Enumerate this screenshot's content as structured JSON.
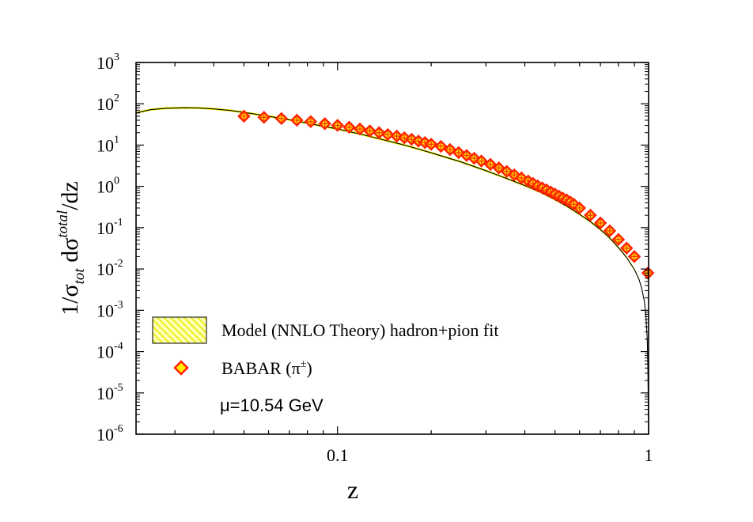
{
  "chart_data": {
    "type": "scatter",
    "xlabel": "z",
    "ylabel": {
      "prefix": "1/σ",
      "sub": "tot",
      "mid": " dσ",
      "sup": "total",
      "suffix": "/dz"
    },
    "x_scale": "log",
    "y_scale": "log",
    "xlim": [
      0.0225,
      1.0
    ],
    "ylim": [
      1e-06,
      1000
    ],
    "x_ticks": [
      {
        "value": 0.1,
        "label": "0.1"
      },
      {
        "value": 1,
        "label": "1"
      }
    ],
    "y_ticks": [
      {
        "value": 1000,
        "base": "10",
        "exp": "3"
      },
      {
        "value": 100,
        "base": "10",
        "exp": "2"
      },
      {
        "value": 10,
        "base": "10",
        "exp": "1"
      },
      {
        "value": 1,
        "base": "10",
        "exp": "0"
      },
      {
        "value": 0.1,
        "base": "10",
        "exp": "-1"
      },
      {
        "value": 0.01,
        "base": "10",
        "exp": "-2"
      },
      {
        "value": 0.001,
        "base": "10",
        "exp": "-3"
      },
      {
        "value": 0.0001,
        "base": "10",
        "exp": "-4"
      },
      {
        "value": 1e-05,
        "base": "10",
        "exp": "-5"
      },
      {
        "value": 1e-06,
        "base": "10",
        "exp": "-6"
      }
    ],
    "grid": false,
    "legend_position": "bottom-left",
    "legend": [
      {
        "label": "Model (NNLO Theory) hadron+pion fit",
        "swatch": "hatched-band",
        "color": "#f2f250"
      },
      {
        "label_prefix": "BABAR (π",
        "label_sup": "±",
        "label_suffix": ")",
        "swatch": "diamond",
        "color": "#ff2200"
      }
    ],
    "annotation": "μ=10.54 GeV",
    "series": [
      {
        "style": "band",
        "color": "#f5f500",
        "edge_color": "#000000",
        "x": [
          0.0225,
          0.025,
          0.028,
          0.032,
          0.036,
          0.04,
          0.045,
          0.05,
          0.06,
          0.07,
          0.08,
          0.09,
          0.1,
          0.12,
          0.14,
          0.16,
          0.18,
          0.2,
          0.25,
          0.3,
          0.35,
          0.4,
          0.45,
          0.5,
          0.55,
          0.6,
          0.65,
          0.7,
          0.75,
          0.8,
          0.85,
          0.9,
          0.93,
          0.95,
          0.97,
          0.98,
          0.99,
          0.995,
          1.0
        ],
        "y": [
          60,
          72,
          78,
          80,
          79,
          75,
          69,
          62,
          50,
          41,
          34,
          28.5,
          24.5,
          18,
          13.5,
          10.5,
          8.2,
          6.5,
          3.9,
          2.4,
          1.55,
          1.05,
          0.72,
          0.48,
          0.32,
          0.21,
          0.14,
          0.09,
          0.056,
          0.033,
          0.019,
          0.0098,
          0.0058,
          0.0035,
          0.0016,
          0.0008,
          0.0002,
          4e-05,
          1e-06
        ]
      },
      {
        "style": "markers",
        "marker": "diamond",
        "color": "#ff2200",
        "face_color": "#ffee00",
        "x": [
          0.05,
          0.058,
          0.066,
          0.074,
          0.082,
          0.091,
          0.1,
          0.109,
          0.118,
          0.127,
          0.136,
          0.145,
          0.155,
          0.164,
          0.173,
          0.182,
          0.191,
          0.2,
          0.215,
          0.23,
          0.245,
          0.26,
          0.275,
          0.29,
          0.31,
          0.33,
          0.35,
          0.37,
          0.39,
          0.41,
          0.425,
          0.44,
          0.455,
          0.47,
          0.485,
          0.5,
          0.515,
          0.53,
          0.545,
          0.56,
          0.575,
          0.6,
          0.65,
          0.7,
          0.75,
          0.8,
          0.85,
          0.9,
          0.995
        ],
        "y": [
          50,
          47,
          44,
          40,
          37,
          33,
          30,
          27,
          24.5,
          22,
          20,
          18,
          16.5,
          15,
          13.8,
          12.5,
          11.5,
          10.5,
          9.3,
          7.8,
          6.6,
          5.6,
          4.8,
          4.1,
          3.4,
          2.8,
          2.3,
          1.9,
          1.6,
          1.35,
          1.18,
          1.03,
          0.92,
          0.82,
          0.73,
          0.65,
          0.58,
          0.52,
          0.47,
          0.42,
          0.37,
          0.3,
          0.2,
          0.13,
          0.084,
          0.052,
          0.032,
          0.02,
          0.008
        ]
      }
    ]
  }
}
